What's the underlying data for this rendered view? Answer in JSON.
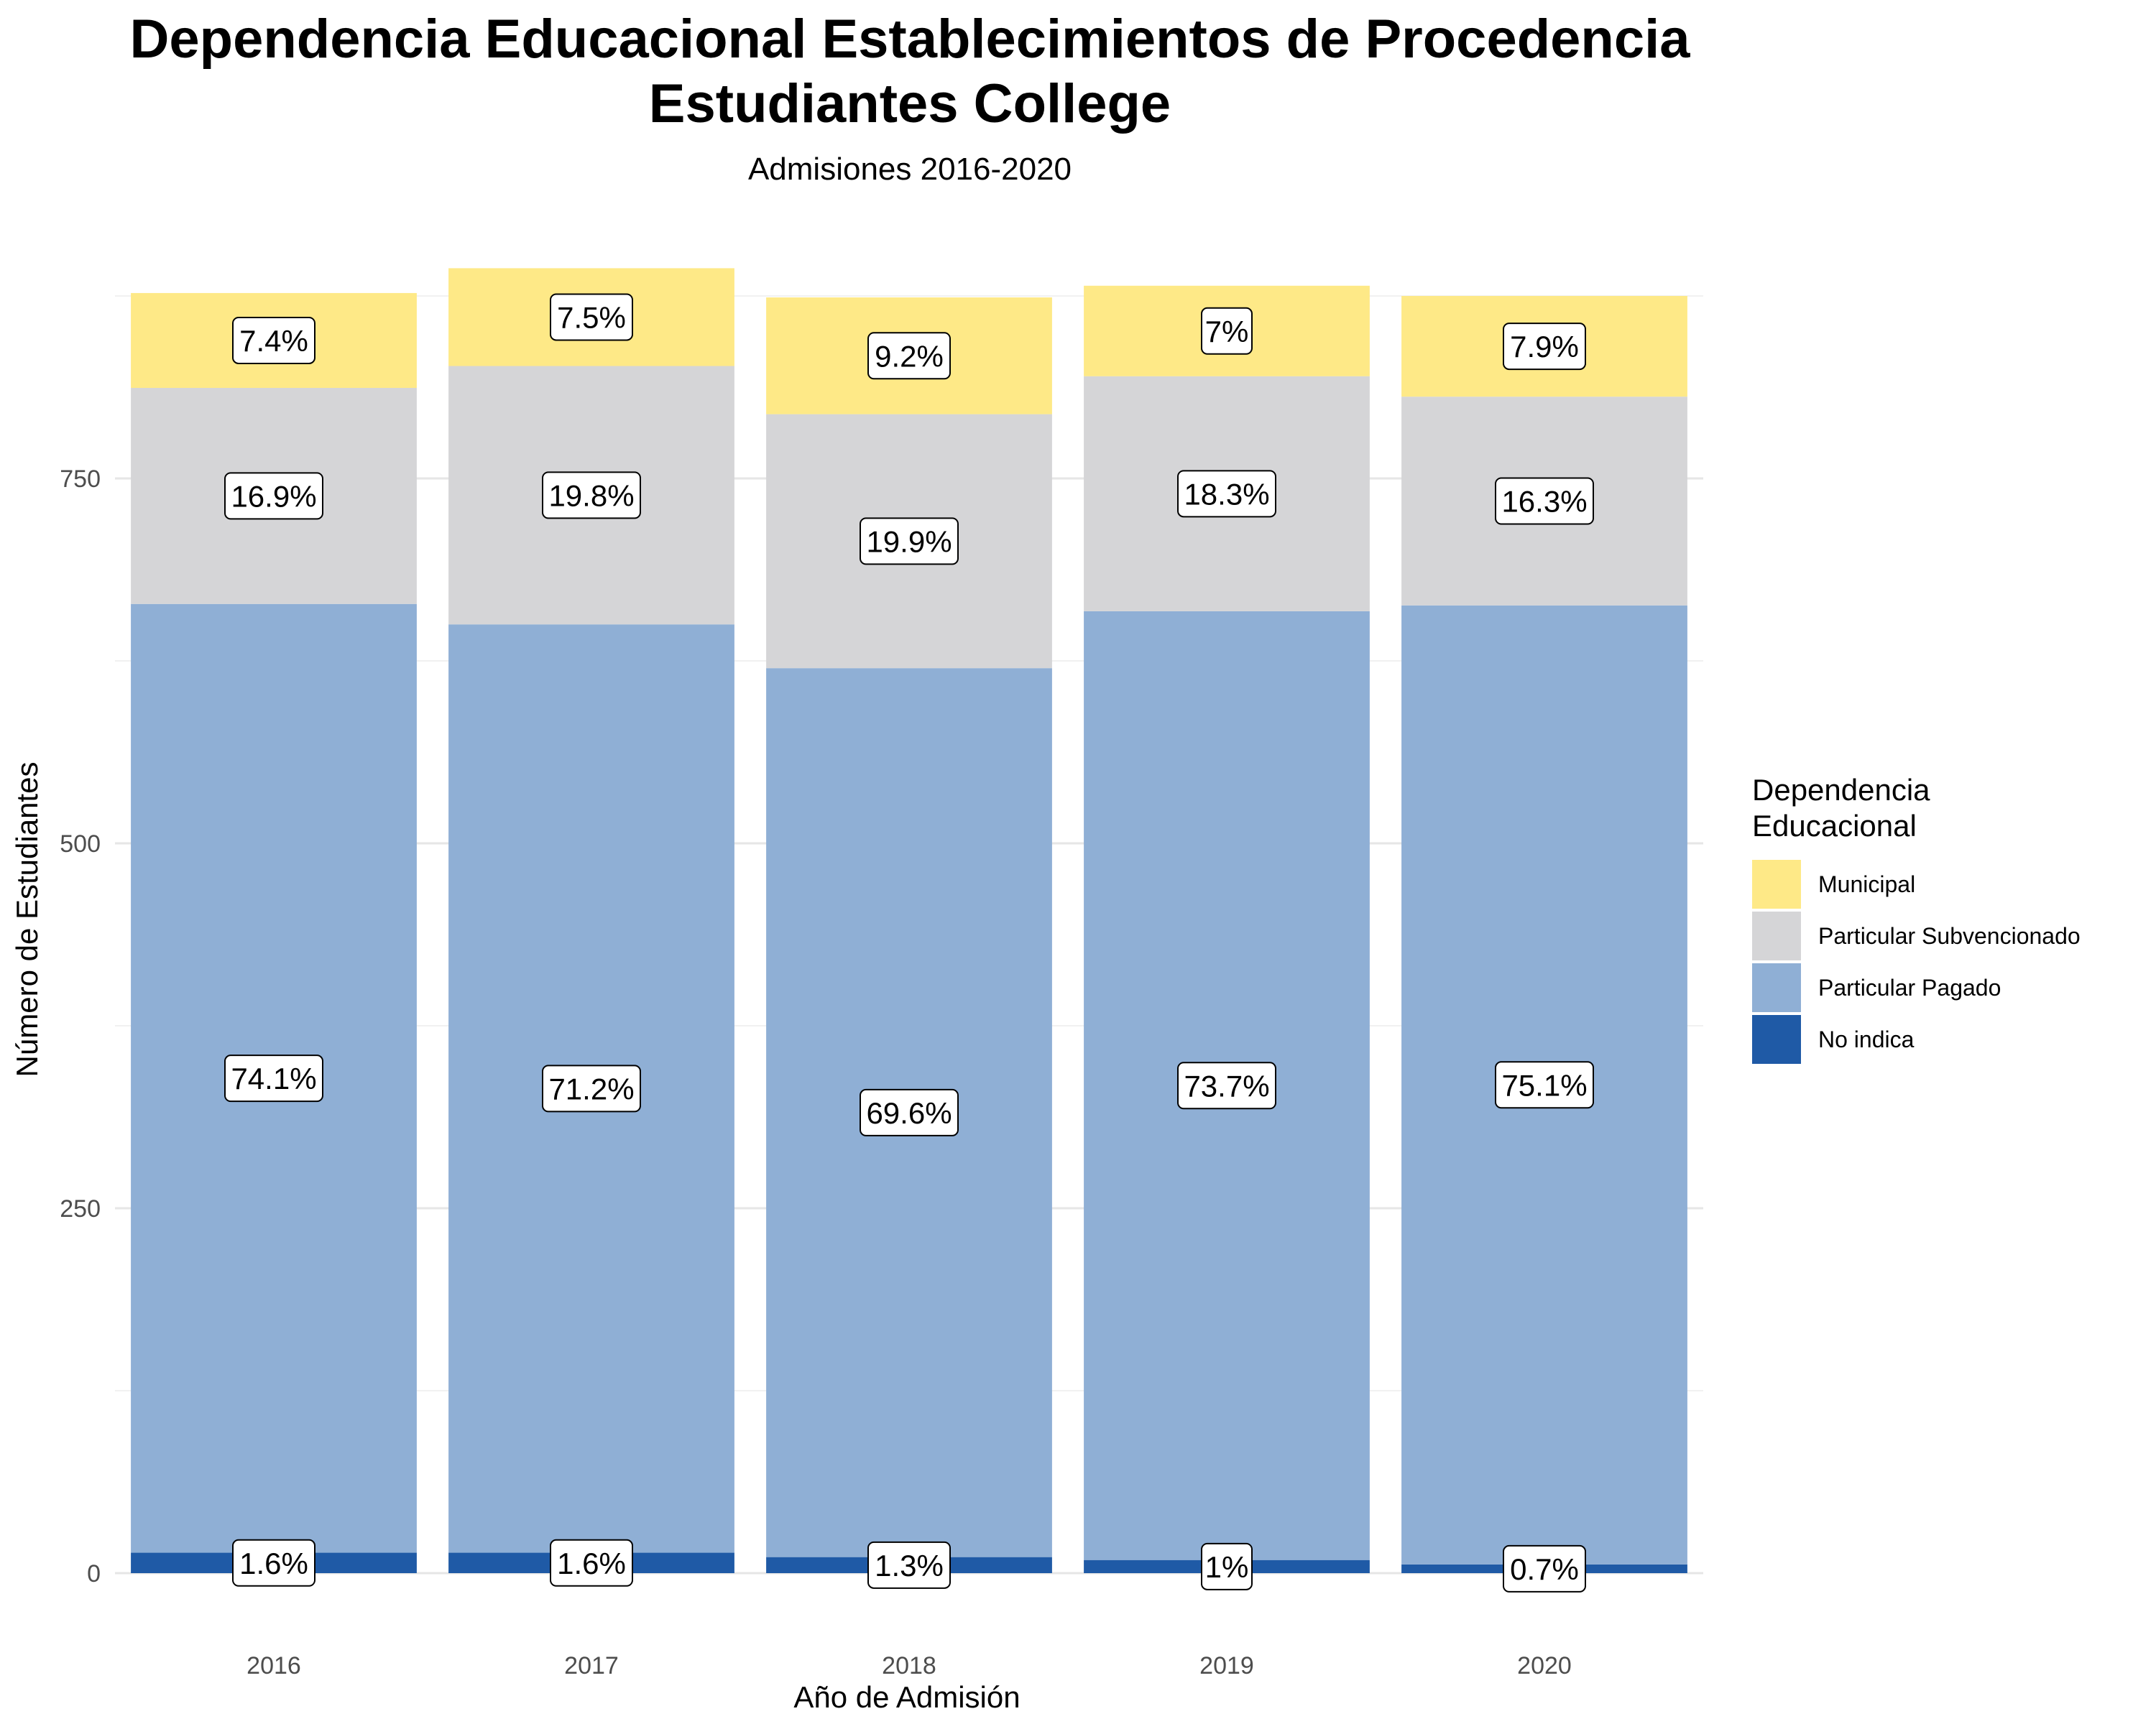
{
  "chart_data": {
    "type": "bar",
    "stacked": true,
    "title_lines": [
      "Dependencia Educacional Establecimientos de Procedencia",
      "Estudiantes College"
    ],
    "subtitle": "Admisiones 2016-2020",
    "xlabel": "Año de Admisión",
    "ylabel": "Número de Estudiantes",
    "ylim": [
      0,
      900
    ],
    "yticks": [
      0,
      250,
      500,
      750
    ],
    "y_minor_gridlines": [
      125,
      375,
      625,
      875
    ],
    "grid": true,
    "categories": [
      "2016",
      "2017",
      "2018",
      "2019",
      "2020"
    ],
    "legend": {
      "title_lines": [
        "Dependencia",
        "Educacional"
      ],
      "placement": "right"
    },
    "series": [
      {
        "name": "No indica",
        "color": "#1f5aa6",
        "values": [
          14,
          14,
          11,
          9,
          6
        ],
        "labels": [
          "1.6%",
          "1.6%",
          "1.3%",
          "1%",
          "0.7%"
        ]
      },
      {
        "name": "Particular Pagado",
        "color": "#8fafd5",
        "values": [
          650,
          636,
          609,
          650,
          657
        ],
        "labels": [
          "74.1%",
          "71.2%",
          "69.6%",
          "73.7%",
          "75.1%"
        ]
      },
      {
        "name": "Particular Subvencionado",
        "color": "#d5d5d7",
        "values": [
          148,
          177,
          174,
          161,
          143
        ],
        "labels": [
          "16.9%",
          "19.8%",
          "19.9%",
          "18.3%",
          "16.3%"
        ]
      },
      {
        "name": "Municipal",
        "color": "#fee987",
        "values": [
          65,
          67,
          80,
          62,
          69
        ],
        "labels": [
          "7.4%",
          "7.5%",
          "9.2%",
          "7%",
          "7.9%"
        ]
      }
    ],
    "legend_order": [
      "Municipal",
      "Particular Subvencionado",
      "Particular Pagado",
      "No indica"
    ]
  }
}
